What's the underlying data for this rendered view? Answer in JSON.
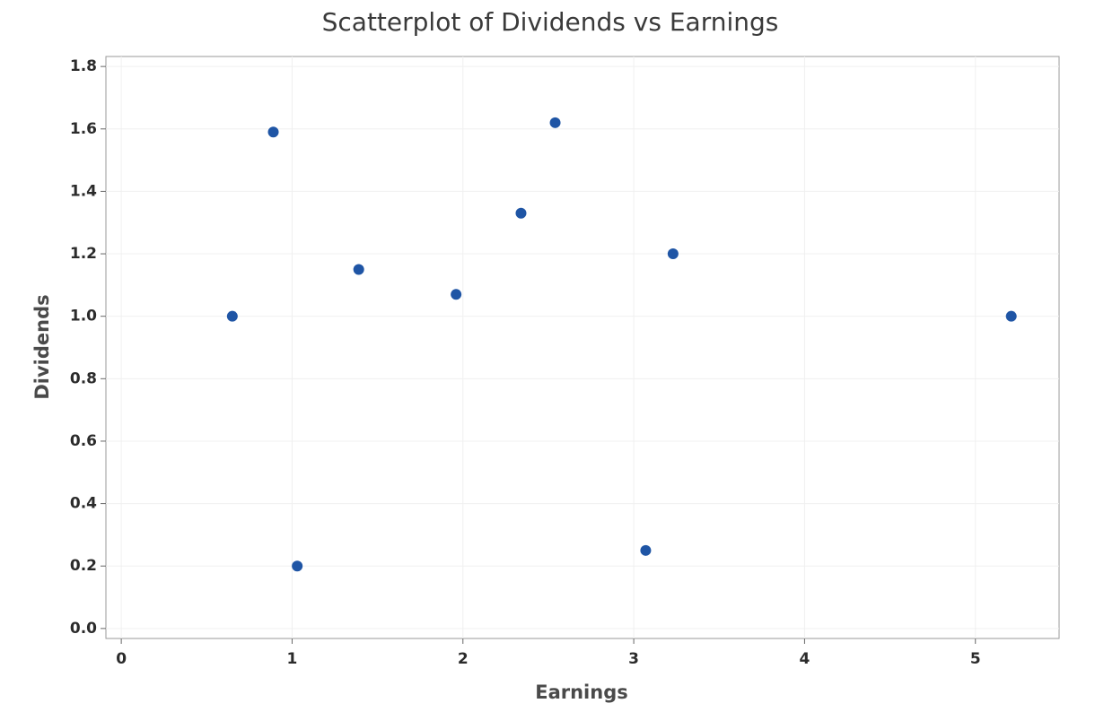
{
  "chart_data": {
    "type": "scatter",
    "title": "Scatterplot of Dividends vs Earnings",
    "x_label": "Earnings",
    "y_label": "Dividends",
    "series": [
      {
        "name": "Dividends",
        "color": "#1f55a5",
        "x": [
          0.65,
          0.89,
          1.03,
          1.39,
          1.96,
          2.34,
          2.54,
          3.07,
          3.23,
          5.21
        ],
        "values": [
          1.0,
          1.59,
          0.2,
          1.15,
          1.07,
          1.33,
          1.62,
          0.25,
          1.2,
          1.0
        ]
      }
    ],
    "xlim": [
      -0.09,
      5.49
    ],
    "xticks": [
      0,
      1,
      2,
      3,
      4,
      5
    ],
    "ylim": [
      -0.032,
      1.832
    ],
    "yticks": [
      {
        "value": 0,
        "label": "0.0"
      },
      0.2,
      0.4,
      0.6,
      0.8,
      {
        "value": 1,
        "label": "1.0"
      },
      1.2,
      1.4,
      1.6,
      1.8
    ],
    "grid": true
  }
}
